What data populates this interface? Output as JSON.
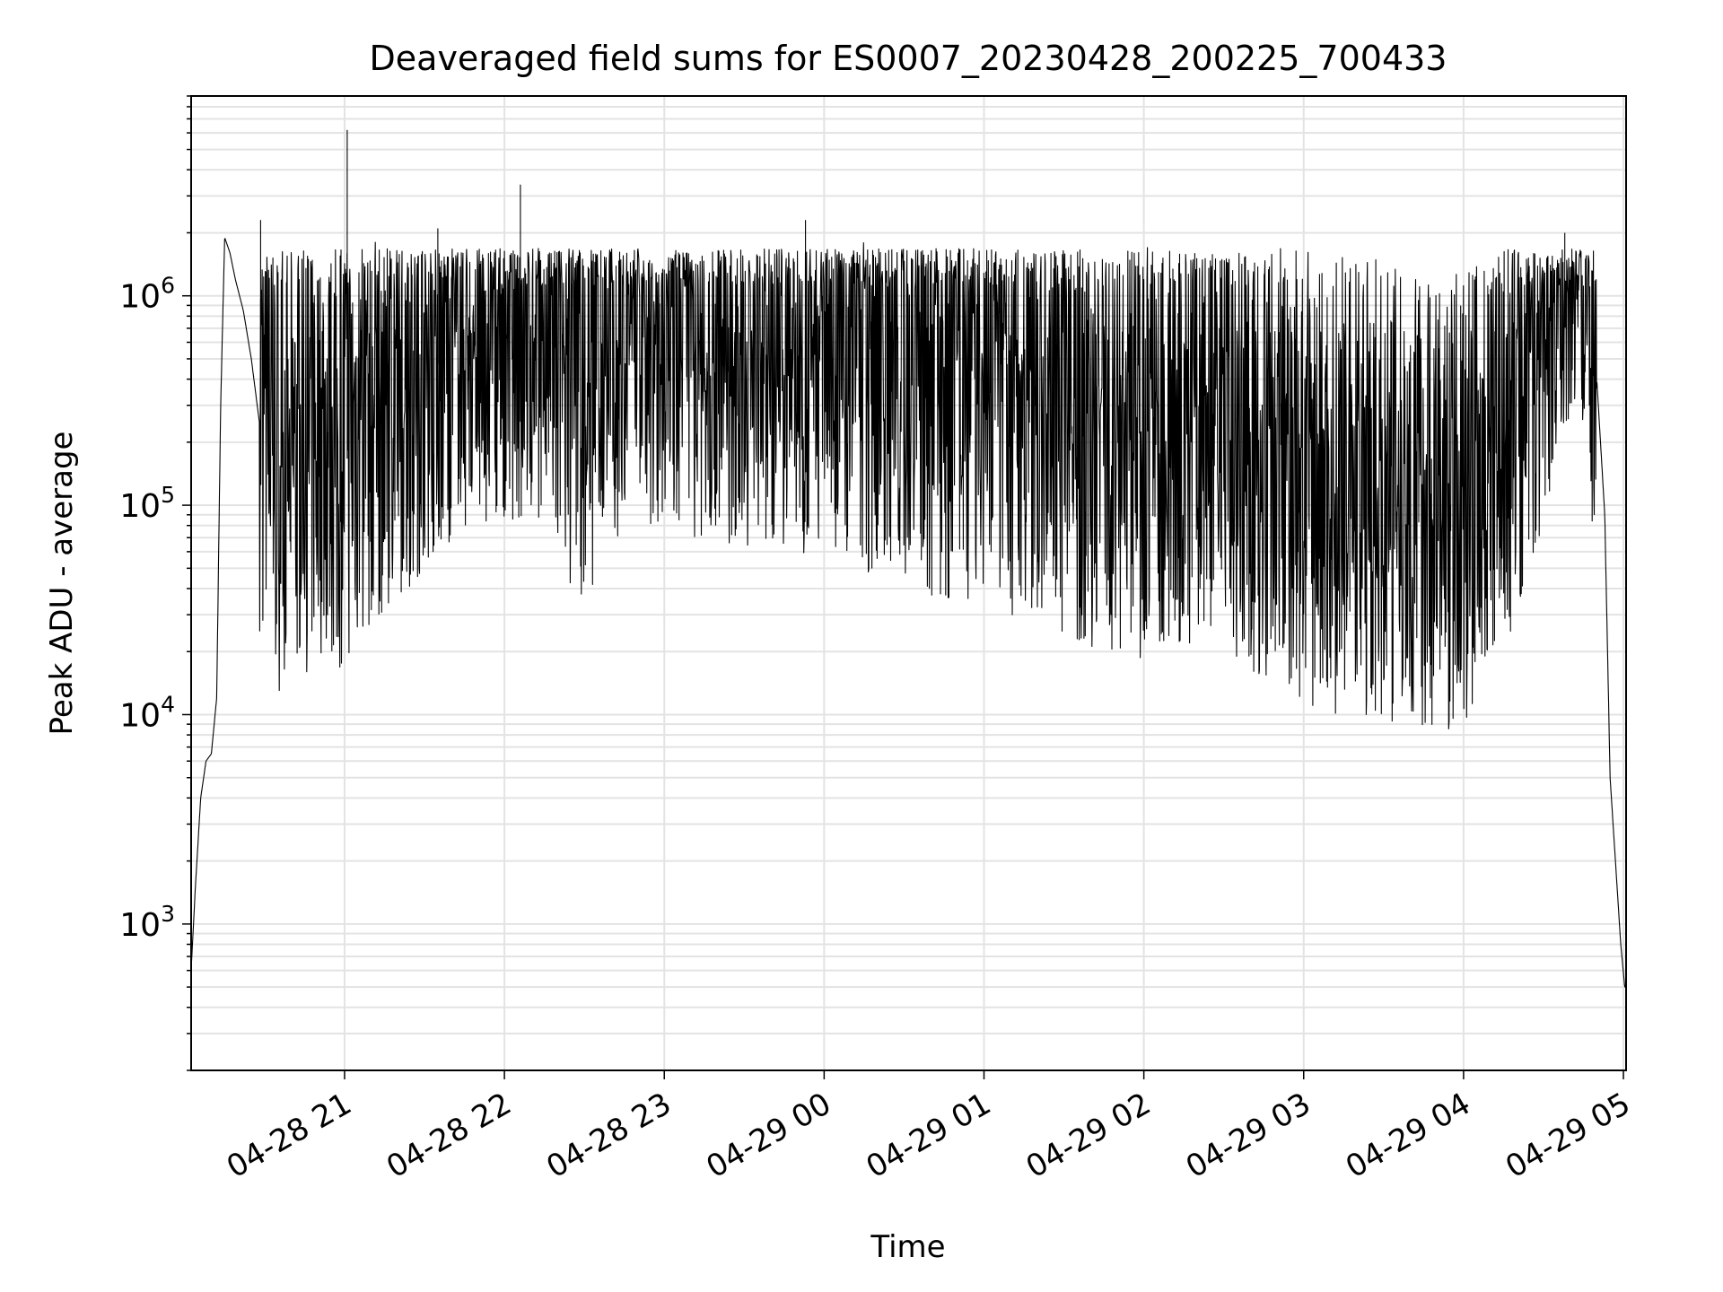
{
  "chart_data": {
    "type": "line",
    "title": "Deaveraged field sums for ES0007_20230428_200225_700433",
    "xlabel": "Time",
    "ylabel": "Peak ADU - average",
    "x_tick_labels": [
      "04-28 21",
      "04-28 22",
      "04-28 23",
      "04-29 00",
      "04-29 01",
      "04-29 02",
      "04-29 03",
      "04-29 04",
      "04-29 05"
    ],
    "x_range": [
      "2023-04-28 20:02:25",
      "2023-04-29 05:01:00"
    ],
    "y_scale": "log",
    "y_ticks": [
      1000,
      10000,
      100000,
      1000000
    ],
    "y_range": [
      200,
      9000000
    ],
    "grid": true,
    "line_color": "#000000",
    "grid_color": "#e3e3e3",
    "series": [
      {
        "points": [
          [
            "2023-04-28 20:02:25",
            600
          ],
          [
            "2023-04-28 20:04:00",
            1500
          ],
          [
            "2023-04-28 20:06:00",
            4000
          ],
          [
            "2023-04-28 20:08:00",
            6000
          ],
          [
            "2023-04-28 20:10:00",
            6500
          ],
          [
            "2023-04-28 20:12:00",
            12000
          ],
          [
            "2023-04-28 20:13:30",
            300000
          ],
          [
            "2023-04-28 20:15:00",
            1900000
          ],
          [
            "2023-04-28 20:17:00",
            1600000
          ],
          [
            "2023-04-28 20:19:00",
            1200000
          ],
          [
            "2023-04-28 20:22:00",
            850000
          ],
          [
            "2023-04-28 20:25:00",
            500000
          ],
          [
            "2023-04-28 20:28:00",
            250000
          ],
          [
            "2023-04-28 20:33:00",
            130000
          ],
          [
            "2023-04-28 20:40:00",
            120000
          ],
          [
            "2023-04-28 20:50:00",
            180000
          ],
          [
            "2023-04-28 21:00:00",
            160000
          ],
          [
            "2023-04-28 21:15:00",
            300000
          ],
          [
            "2023-04-28 21:30:00",
            450000
          ],
          [
            "2023-04-28 21:45:00",
            520000
          ],
          [
            "2023-04-28 22:00:00",
            600000
          ],
          [
            "2023-04-28 22:15:00",
            500000
          ],
          [
            "2023-04-28 22:30:00",
            350000
          ],
          [
            "2023-04-28 22:45:00",
            550000
          ],
          [
            "2023-04-28 23:00:00",
            550000
          ],
          [
            "2023-04-28 23:30:00",
            500000
          ],
          [
            "2023-04-29 00:00:00",
            480000
          ],
          [
            "2023-04-29 00:30:00",
            380000
          ],
          [
            "2023-04-29 01:00:00",
            320000
          ],
          [
            "2023-04-29 01:30:00",
            220000
          ],
          [
            "2023-04-29 02:00:00",
            180000
          ],
          [
            "2023-04-29 02:30:00",
            200000
          ],
          [
            "2023-04-29 03:00:00",
            100000
          ],
          [
            "2023-04-29 03:30:00",
            90000
          ],
          [
            "2023-04-29 04:00:00",
            80000
          ],
          [
            "2023-04-29 04:15:00",
            200000
          ],
          [
            "2023-04-29 04:30:00",
            600000
          ],
          [
            "2023-04-29 04:40:00",
            1100000
          ],
          [
            "2023-04-29 04:45:00",
            1000000
          ],
          [
            "2023-04-29 04:50:00",
            400000
          ],
          [
            "2023-04-29 04:53:00",
            90000
          ],
          [
            "2023-04-29 04:55:00",
            5000
          ],
          [
            "2023-04-29 04:57:00",
            2000
          ],
          [
            "2023-04-29 04:59:00",
            800
          ],
          [
            "2023-04-29 05:00:30",
            500
          ]
        ],
        "spikes": [
          [
            "2023-04-28 20:28:30",
            2300000
          ],
          [
            "2023-04-28 21:01:00",
            6200000
          ],
          [
            "2023-04-28 22:06:00",
            3400000
          ],
          [
            "2023-04-28 23:53:00",
            2300000
          ],
          [
            "2023-04-28 21:35:00",
            2100000
          ],
          [
            "2023-04-29 04:38:00",
            2000000
          ]
        ]
      }
    ]
  }
}
